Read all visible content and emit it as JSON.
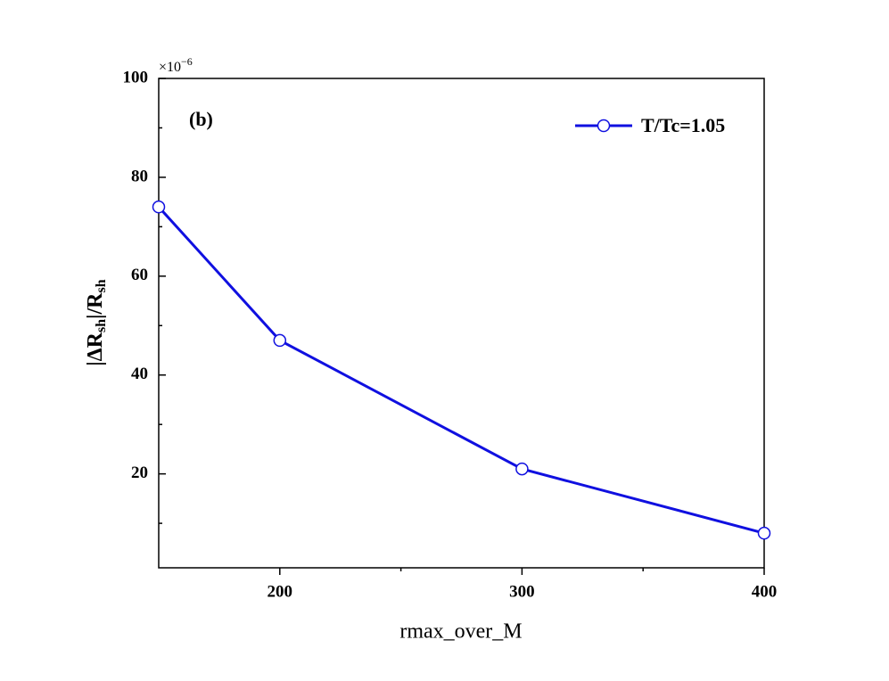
{
  "chart_data": {
    "type": "line",
    "annotation": "(b)",
    "xlabel": "rmax_over_M",
    "ylabel": [
      "|ΔR",
      "sh",
      "|/R",
      "sh"
    ],
    "y_multiplier": [
      "×10",
      "−6"
    ],
    "x": [
      150,
      200,
      300,
      400
    ],
    "series": [
      {
        "name": "T/Tc=1.05",
        "color": "#1010e0",
        "values": [
          74,
          47,
          21,
          8
        ]
      }
    ],
    "xlim": [
      150,
      400
    ],
    "xticks": [
      200,
      300,
      400
    ],
    "xminorticks": [
      250,
      350
    ],
    "ylim": [
      1,
      100
    ],
    "yticks": [
      20,
      40,
      60,
      80,
      100
    ],
    "yminorticks": [
      10,
      30,
      50,
      70,
      90
    ],
    "legend": "upper right",
    "grid": false
  }
}
